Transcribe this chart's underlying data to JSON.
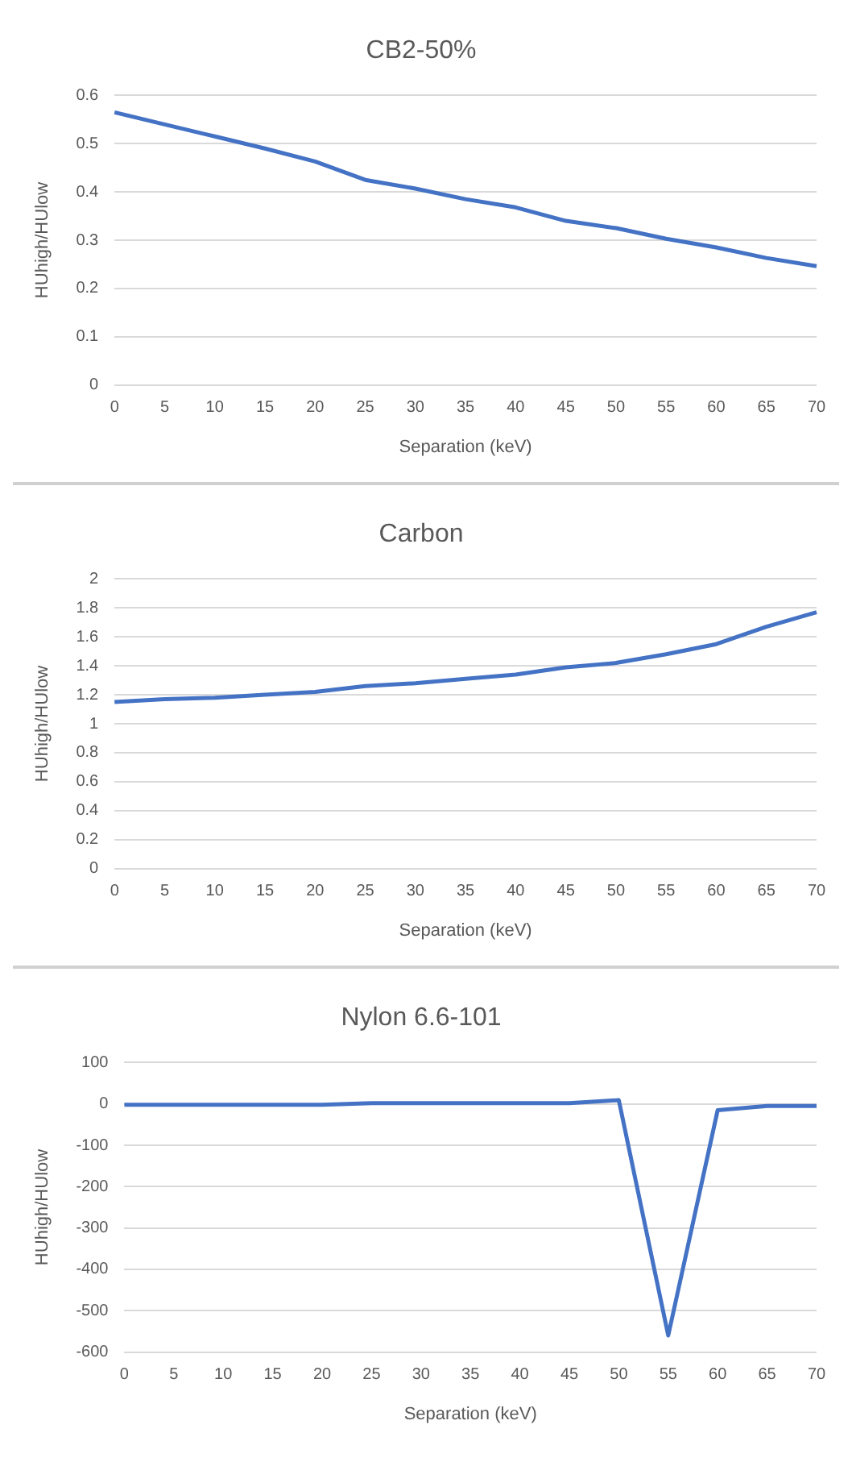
{
  "chart_data": [
    {
      "type": "line",
      "title": "CB2-50%",
      "xlabel": "Separation (keV)",
      "ylabel": "HUhigh/HUlow",
      "categories": [
        "0",
        "5",
        "10",
        "15",
        "20",
        "25",
        "30",
        "35",
        "40",
        "45",
        "50",
        "55",
        "60",
        "65",
        "70"
      ],
      "series": [
        {
          "color": "#4472c4",
          "values": [
            0.565,
            0.54,
            0.515,
            0.49,
            0.463,
            0.425,
            0.407,
            0.385,
            0.368,
            0.34,
            0.325,
            0.303,
            0.285,
            0.263,
            0.246
          ]
        }
      ],
      "ylim": [
        0,
        0.6
      ],
      "yticks": [
        0,
        0.1,
        0.2,
        0.3,
        0.4,
        0.5,
        0.6
      ],
      "grid": "y",
      "legend": false
    },
    {
      "type": "line",
      "title": "Carbon",
      "xlabel": "Separation (keV)",
      "ylabel": "HUhigh/HUlow",
      "categories": [
        "0",
        "5",
        "10",
        "15",
        "20",
        "25",
        "30",
        "35",
        "40",
        "45",
        "50",
        "55",
        "60",
        "65",
        "70"
      ],
      "series": [
        {
          "color": "#4472c4",
          "values": [
            1.15,
            1.17,
            1.18,
            1.2,
            1.22,
            1.26,
            1.28,
            1.31,
            1.34,
            1.39,
            1.42,
            1.48,
            1.55,
            1.67,
            1.77
          ]
        }
      ],
      "ylim": [
        0,
        2
      ],
      "yticks": [
        0,
        0.2,
        0.4,
        0.6,
        0.8,
        1,
        1.2,
        1.4,
        1.6,
        1.8,
        2
      ],
      "grid": "y",
      "legend": false
    },
    {
      "type": "line",
      "title": "Nylon 6.6-101",
      "xlabel": "Separation (keV)",
      "ylabel": "HUhigh/HUlow",
      "categories": [
        "0",
        "5",
        "10",
        "15",
        "20",
        "25",
        "30",
        "35",
        "40",
        "45",
        "50",
        "55",
        "60",
        "65",
        "70"
      ],
      "series": [
        {
          "color": "#4472c4",
          "values": [
            -2,
            -2,
            -2,
            -2,
            -2,
            2,
            2,
            2,
            2,
            2,
            9,
            -560,
            -15,
            -5,
            -5
          ]
        }
      ],
      "ylim": [
        -600,
        100
      ],
      "yticks": [
        -600,
        -500,
        -400,
        -300,
        -200,
        -100,
        0,
        100
      ],
      "grid": "y",
      "legend": false
    }
  ]
}
